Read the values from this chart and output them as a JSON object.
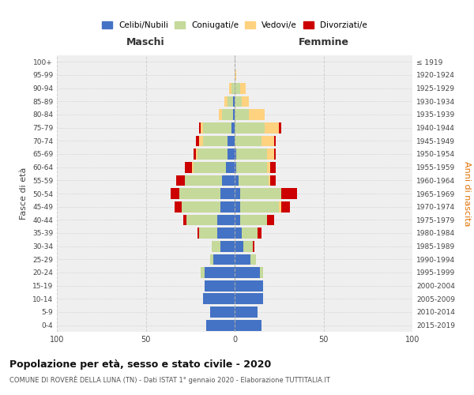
{
  "age_groups": [
    "0-4",
    "5-9",
    "10-14",
    "15-19",
    "20-24",
    "25-29",
    "30-34",
    "35-39",
    "40-44",
    "45-49",
    "50-54",
    "55-59",
    "60-64",
    "65-69",
    "70-74",
    "75-79",
    "80-84",
    "85-89",
    "90-94",
    "95-99",
    "100+"
  ],
  "birth_years": [
    "2015-2019",
    "2010-2014",
    "2005-2009",
    "2000-2004",
    "1995-1999",
    "1990-1994",
    "1985-1989",
    "1980-1984",
    "1975-1979",
    "1970-1974",
    "1965-1969",
    "1960-1964",
    "1955-1959",
    "1950-1954",
    "1945-1949",
    "1940-1944",
    "1935-1939",
    "1930-1934",
    "1925-1929",
    "1920-1924",
    "≤ 1919"
  ],
  "colors": {
    "celibe": "#4472C4",
    "coniugato": "#C5D99A",
    "vedovo": "#FFD280",
    "divorziato": "#CC0000"
  },
  "maschi": {
    "celibe": [
      16,
      14,
      18,
      17,
      17,
      12,
      8,
      10,
      10,
      8,
      8,
      7,
      5,
      4,
      4,
      2,
      1,
      1,
      0,
      0,
      0
    ],
    "coniugato": [
      0,
      0,
      0,
      0,
      2,
      2,
      5,
      10,
      17,
      22,
      23,
      21,
      18,
      17,
      14,
      16,
      6,
      3,
      2,
      0,
      0
    ],
    "vedovo": [
      0,
      0,
      0,
      0,
      0,
      0,
      0,
      0,
      0,
      0,
      0,
      0,
      1,
      1,
      2,
      1,
      2,
      2,
      1,
      0,
      0
    ],
    "divorziato": [
      0,
      0,
      0,
      0,
      0,
      0,
      0,
      1,
      2,
      4,
      5,
      5,
      4,
      1,
      2,
      1,
      0,
      0,
      0,
      0,
      0
    ]
  },
  "femmine": {
    "nubile": [
      15,
      13,
      16,
      16,
      14,
      9,
      5,
      4,
      3,
      3,
      3,
      2,
      1,
      1,
      0,
      0,
      0,
      0,
      0,
      0,
      0
    ],
    "coniugata": [
      0,
      0,
      0,
      0,
      2,
      3,
      5,
      9,
      15,
      22,
      23,
      17,
      17,
      17,
      15,
      17,
      8,
      4,
      3,
      0,
      0
    ],
    "vedova": [
      0,
      0,
      0,
      0,
      0,
      0,
      0,
      0,
      0,
      1,
      0,
      1,
      2,
      4,
      7,
      8,
      9,
      4,
      3,
      1,
      0
    ],
    "divorziata": [
      0,
      0,
      0,
      0,
      0,
      0,
      1,
      2,
      4,
      5,
      9,
      3,
      3,
      1,
      1,
      1,
      0,
      0,
      0,
      0,
      0
    ]
  },
  "title": "Popolazione per età, sesso e stato civile - 2020",
  "subtitle": "COMUNE DI ROVERÈ DELLA LUNA (TN) - Dati ISTAT 1° gennaio 2020 - Elaborazione TUTTITALIA.IT",
  "xlabel_left": "Maschi",
  "xlabel_right": "Femmine",
  "ylabel_left": "Fasce di età",
  "ylabel_right": "Anni di nascita",
  "legend_labels": [
    "Celibi/Nubili",
    "Coniugati/e",
    "Vedovi/e",
    "Divorziati/e"
  ],
  "xlim": 100,
  "background_color": "#ffffff",
  "plot_bg": "#efefef",
  "grid_color": "#cccccc"
}
